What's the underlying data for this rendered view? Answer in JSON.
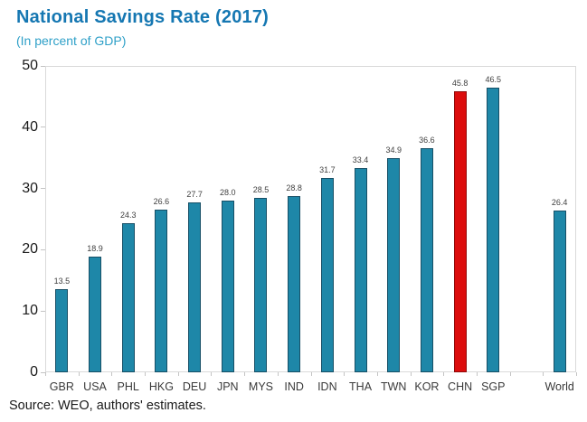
{
  "header": {
    "title": "National Savings Rate (2017)",
    "subtitle": "(In percent of GDP)"
  },
  "source": "Source: WEO, authors' estimates.",
  "chart_data": {
    "type": "bar",
    "title": "National Savings Rate (2017)",
    "subtitle": "(In percent of GDP)",
    "categories": [
      "GBR",
      "USA",
      "PHL",
      "HKG",
      "DEU",
      "JPN",
      "MYS",
      "IND",
      "IDN",
      "THA",
      "TWN",
      "KOR",
      "CHN",
      "SGP",
      "World"
    ],
    "values": [
      13.5,
      18.9,
      24.3,
      26.6,
      27.7,
      28.0,
      28.5,
      28.8,
      31.7,
      33.4,
      34.9,
      36.6,
      45.8,
      46.5,
      26.4
    ],
    "value_label_decimals": 1,
    "highlight_category": "CHN",
    "separated_last_category": true,
    "xlabel": "",
    "ylabel": "",
    "ylim": [
      0,
      50
    ],
    "ytick_step": 10,
    "grid": false,
    "legend": "none",
    "colors": {
      "bar_fill": "#1E87A8",
      "bar_border": "#174F66",
      "highlight_fill": "#DC0D0D",
      "highlight_border": "#8F0A0A",
      "plot_border": "#DADADA",
      "tick": "#C4C4C4",
      "title": "#1577B2",
      "subtitle": "#2FA0C8",
      "value_label": "#404040",
      "axis_label": "#3A3A3A"
    }
  }
}
